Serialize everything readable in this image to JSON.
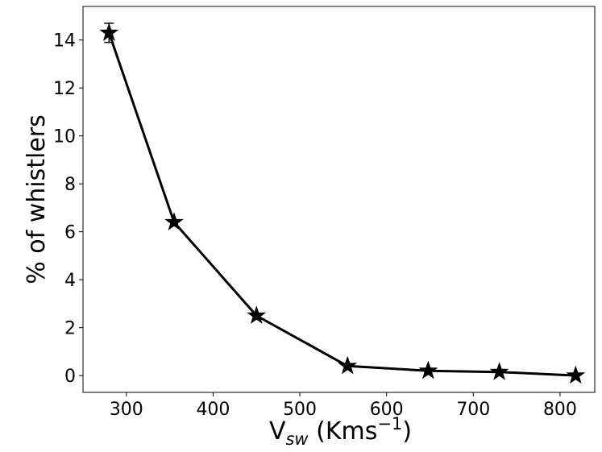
{
  "chart_data": {
    "type": "line",
    "title": "",
    "xlabel": {
      "main": "V",
      "sub": "sw",
      "unit_pre": " (Kms",
      "unit_sup": "−1",
      "unit_post": ")"
    },
    "ylabel": "% of whistlers",
    "xlim": [
      250,
      840
    ],
    "ylim": [
      -0.7,
      15.4
    ],
    "xticks": [
      300,
      400,
      500,
      600,
      700,
      800
    ],
    "yticks": [
      0,
      2,
      4,
      6,
      8,
      10,
      12,
      14
    ],
    "grid": false,
    "series": [
      {
        "marker": "star",
        "color": "#000000",
        "x": [
          280,
          355,
          450,
          555,
          648,
          730,
          818
        ],
        "y": [
          14.3,
          6.4,
          2.5,
          0.4,
          0.2,
          0.15,
          0.0
        ],
        "yerr": [
          0.4,
          0,
          0,
          0,
          0,
          0,
          0
        ]
      }
    ]
  }
}
